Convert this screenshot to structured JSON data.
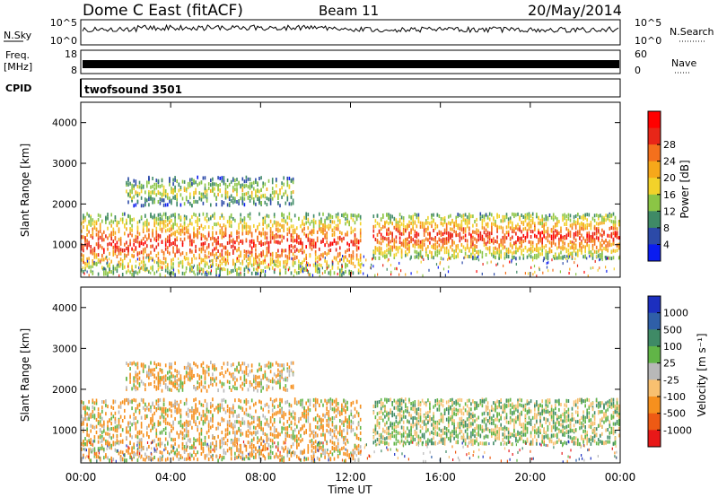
{
  "header": {
    "station": "Dome C East (fitACF)",
    "beam": "Beam 11",
    "date": "20/May/2014"
  },
  "noise_panel": {
    "left_label": "N.Sky",
    "left_ticks": [
      "10^5",
      "10^0"
    ],
    "right_ticks": [
      "10^5",
      "10^0"
    ],
    "right_label": "N.Search"
  },
  "freq_panel": {
    "left_label_1": "Freq.",
    "left_label_2": "[MHz]",
    "left_ticks": [
      "18",
      "8"
    ],
    "right_ticks": [
      "60",
      "0"
    ],
    "right_label": "Nave"
  },
  "cpid_panel": {
    "label": "CPID",
    "program": "twofsound 3501"
  },
  "chart_data": [
    {
      "type": "heatmap",
      "name": "power",
      "ylabel": "Slant Range [km]",
      "yticks": [
        "1000",
        "2000",
        "3000",
        "4000"
      ],
      "ylim": [
        200,
        4500
      ],
      "xlim_hours": [
        0,
        24
      ],
      "colorbar_label": "Power [dB]",
      "colorbar_ticks": [
        "4",
        "8",
        "12",
        "16",
        "20",
        "24",
        "28"
      ],
      "colors": [
        "#0a1cf0",
        "#2c4aa8",
        "#3f8a66",
        "#8bc545",
        "#f2d22a",
        "#f6a81a",
        "#f4701c",
        "#e82618",
        "#ff0000"
      ],
      "echo_bands": [
        {
          "t0": 0.0,
          "t1": 12.5,
          "r0": 300,
          "r1": 1800,
          "peak_db": 28
        },
        {
          "t0": 2.0,
          "t1": 9.5,
          "r0": 2000,
          "r1": 2700,
          "peak_db": 16
        },
        {
          "t0": 13.0,
          "t1": 24.0,
          "r0": 700,
          "r1": 1800,
          "peak_db": 28
        }
      ]
    },
    {
      "type": "heatmap",
      "name": "velocity",
      "ylabel": "Slant Range [km]",
      "yticks": [
        "1000",
        "2000",
        "3000",
        "4000"
      ],
      "ylim": [
        200,
        4500
      ],
      "xlim_hours": [
        0,
        24
      ],
      "colorbar_label": "Velocity [m s⁻¹]",
      "colorbar_ticks": [
        "1000",
        "500",
        "100",
        "25",
        "-25",
        "-100",
        "-500",
        "-1000"
      ],
      "colors": [
        "#1c2fbf",
        "#2f5fa8",
        "#3f8a66",
        "#61b547",
        "#b8b8b8",
        "#f8c070",
        "#f6901e",
        "#ee5a14",
        "#e81818"
      ],
      "echo_bands": [
        {
          "t0": 0.0,
          "t1": 12.5,
          "r0": 300,
          "r1": 1800,
          "velocity": -100
        },
        {
          "t0": 2.0,
          "t1": 9.5,
          "r0": 2000,
          "r1": 2700,
          "velocity": -100
        },
        {
          "t0": 13.0,
          "t1": 24.0,
          "r0": 700,
          "r1": 1800,
          "velocity": 100
        }
      ]
    }
  ],
  "time_axis": {
    "ticks": [
      "00:00",
      "04:00",
      "08:00",
      "12:00",
      "16:00",
      "20:00",
      "00:00"
    ],
    "label": "Time UT"
  }
}
